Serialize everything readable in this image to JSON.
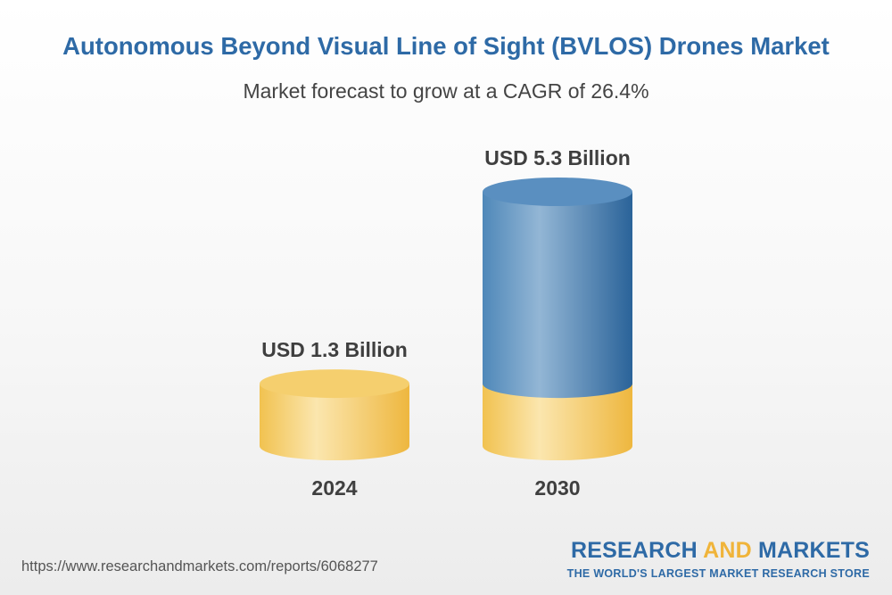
{
  "header": {
    "title": "Autonomous Beyond Visual Line of Sight (BVLOS) Drones Market",
    "subtitle": "Market forecast to grow at a CAGR of 26.4%"
  },
  "colors": {
    "title": "#2e6aa6",
    "base_bar": "#f3c24f",
    "growth_bar": "#4a86b8",
    "text": "#3f3f3f"
  },
  "chart_data": {
    "type": "bar",
    "style": "3d-cylinder",
    "title": "Autonomous Beyond Visual Line of Sight (BVLOS) Drones Market",
    "subtitle": "Market forecast to grow at a CAGR of 26.4%",
    "categories": [
      "2024",
      "2030"
    ],
    "values": [
      1.3,
      5.3
    ],
    "value_labels": [
      "USD 1.3 Billion",
      "USD 5.3 Billion"
    ],
    "unit": "USD Billion",
    "ylim": [
      0,
      5.3
    ],
    "grid": false
  },
  "footer": {
    "url": "https://www.researchandmarkets.com/reports/6068277",
    "brand_part1": "RESEARCH",
    "brand_part2": "AND",
    "brand_part3": "MARKETS",
    "tagline": "THE WORLD'S LARGEST MARKET RESEARCH STORE"
  }
}
